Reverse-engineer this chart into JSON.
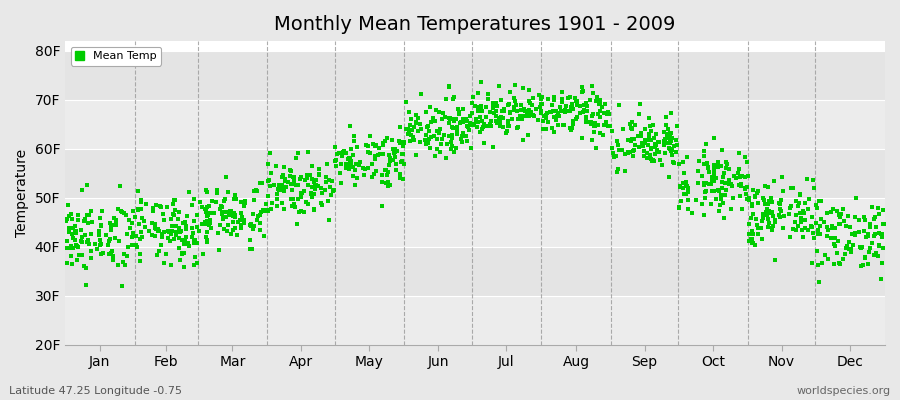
{
  "title": "Monthly Mean Temperatures 1901 - 2009",
  "ylabel": "Temperature",
  "xlabel": "",
  "ylim": [
    20,
    82
  ],
  "yticks": [
    20,
    30,
    40,
    50,
    60,
    70,
    80
  ],
  "ytick_labels": [
    "20F",
    "30F",
    "40F",
    "50F",
    "60F",
    "70F",
    "80F"
  ],
  "months": [
    "Jan",
    "Feb",
    "Mar",
    "Apr",
    "May",
    "Jun",
    "Jul",
    "Aug",
    "Sep",
    "Oct",
    "Nov",
    "Dec"
  ],
  "dot_color": "#00cc00",
  "background_color": "#e8e8e8",
  "plot_bg_light": "#eeeeee",
  "plot_bg_dark": "#e0e0e0",
  "grid_color": "#ffffff",
  "legend_label": "Mean Temp",
  "subtitle_left": "Latitude 47.25 Longitude -0.75",
  "subtitle_right": "worldspecies.org",
  "num_years": 109,
  "seed": 42,
  "monthly_means": [
    42.0,
    43.0,
    46.5,
    52.0,
    58.0,
    64.5,
    67.5,
    67.0,
    61.0,
    53.5,
    46.5,
    42.5
  ],
  "monthly_stds": [
    3.8,
    3.5,
    3.2,
    2.8,
    2.8,
    2.8,
    2.5,
    2.5,
    3.0,
    3.2,
    3.5,
    3.8
  ],
  "month_days": [
    31,
    28,
    31,
    30,
    31,
    30,
    31,
    31,
    30,
    31,
    30,
    31
  ],
  "dashed_line_color": "#999999",
  "band_colors": [
    "#ececec",
    "#e4e4e4"
  ]
}
